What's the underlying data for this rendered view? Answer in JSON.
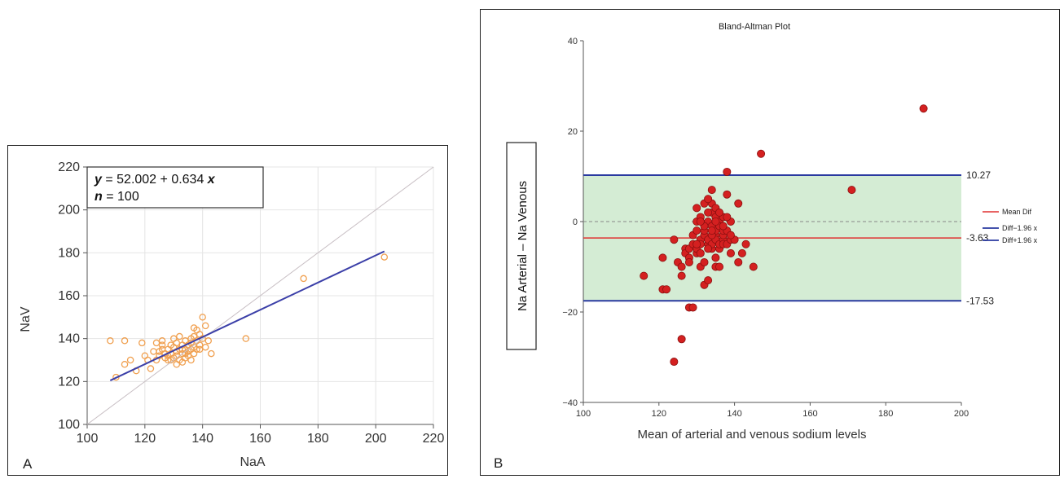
{
  "chart_data": [
    {
      "type": "scatter",
      "panel_label": "A",
      "title": "",
      "xlabel": "NaA",
      "ylabel": "NaV",
      "xlim": [
        100,
        220
      ],
      "ylim": [
        100,
        220
      ],
      "xticks": [
        "100",
        "120",
        "140",
        "160",
        "180",
        "200",
        "220"
      ],
      "yticks": [
        "100",
        "120",
        "140",
        "160",
        "180",
        "200",
        "220"
      ],
      "grid": true,
      "legend": {
        "eq_y": "y",
        "eq_rest": " = 52.002  +  0.634 ",
        "eq_x": "x",
        "n_label": "n",
        "n_rest": " = 100"
      },
      "regression": {
        "intercept": 52.002,
        "slope": 0.634,
        "x_range": [
          108,
          203
        ]
      },
      "identity_line": true,
      "colors": {
        "points": "#f0a050",
        "regression": "#3b3fa8",
        "identity": "#c8bfc4"
      },
      "points": [
        [
          108,
          139
        ],
        [
          110,
          122
        ],
        [
          113,
          139
        ],
        [
          113,
          128
        ],
        [
          115,
          130
        ],
        [
          117,
          125
        ],
        [
          119,
          138
        ],
        [
          120,
          132
        ],
        [
          121,
          130
        ],
        [
          122,
          126
        ],
        [
          123,
          134
        ],
        [
          124,
          130
        ],
        [
          124,
          138
        ],
        [
          125,
          132
        ],
        [
          126,
          137
        ],
        [
          126,
          135
        ],
        [
          126,
          139
        ],
        [
          127,
          133
        ],
        [
          127,
          131
        ],
        [
          128,
          135
        ],
        [
          128,
          132
        ],
        [
          129,
          133
        ],
        [
          129,
          137
        ],
        [
          130,
          136
        ],
        [
          130,
          131
        ],
        [
          130,
          140
        ],
        [
          131,
          128
        ],
        [
          131,
          134
        ],
        [
          131,
          138
        ],
        [
          132,
          130
        ],
        [
          132,
          135
        ],
        [
          132,
          141
        ],
        [
          133,
          133
        ],
        [
          133,
          137
        ],
        [
          133,
          129
        ],
        [
          134,
          131
        ],
        [
          134,
          135
        ],
        [
          134,
          139
        ],
        [
          135,
          134
        ],
        [
          135,
          137
        ],
        [
          135,
          132
        ],
        [
          136,
          140
        ],
        [
          136,
          135
        ],
        [
          136,
          130
        ],
        [
          137,
          145
        ],
        [
          137,
          136
        ],
        [
          137,
          133
        ],
        [
          138,
          144
        ],
        [
          138,
          139
        ],
        [
          138,
          135
        ],
        [
          139,
          137
        ],
        [
          139,
          142
        ],
        [
          140,
          150
        ],
        [
          140,
          140
        ],
        [
          141,
          146
        ],
        [
          141,
          136
        ],
        [
          142,
          139
        ],
        [
          143,
          133
        ],
        [
          155,
          140
        ],
        [
          175,
          168
        ],
        [
          203,
          178
        ],
        [
          125,
          134
        ],
        [
          129,
          130
        ],
        [
          133,
          135
        ],
        [
          136,
          138
        ],
        [
          128,
          130
        ],
        [
          131,
          132
        ],
        [
          134,
          133
        ],
        [
          137,
          141
        ],
        [
          139,
          135
        ]
      ]
    },
    {
      "type": "scatter",
      "panel_label": "B",
      "title": "Bland-Altman Plot",
      "xlabel": "Mean of arterial and venous sodium levels",
      "ylabel": "Na Arterial – Na Venous",
      "xlim": [
        100,
        200
      ],
      "ylim": [
        -40,
        40
      ],
      "xticks": [
        "100",
        "120",
        "140",
        "160",
        "180",
        "200"
      ],
      "yticks": [
        "40",
        "20",
        "0",
        "−20",
        "−40"
      ],
      "mean_diff": -3.63,
      "upper_loa": 10.27,
      "lower_loa": -17.53,
      "mean_label": "-3.63",
      "upper_label": "10.27",
      "lower_label": "-17.53",
      "legend": {
        "mean": "Mean Dif",
        "lower": "Diff−1.96 x",
        "upper": "Diff+1.96 x"
      },
      "colors": {
        "points": "#d42020",
        "point_stroke": "#8a1010",
        "mean_line": "#e03030",
        "loa_line": "#2a3aa0",
        "band": "#d4ecd4",
        "zero_line": "#888888"
      },
      "points": [
        [
          116,
          -12
        ],
        [
          121,
          -8
        ],
        [
          121,
          -15
        ],
        [
          122,
          -15
        ],
        [
          124,
          -4
        ],
        [
          124,
          -31
        ],
        [
          125,
          -9
        ],
        [
          126,
          -10
        ],
        [
          126,
          -26
        ],
        [
          126,
          -12
        ],
        [
          127,
          -6
        ],
        [
          127,
          -7
        ],
        [
          128,
          -8
        ],
        [
          128,
          -9
        ],
        [
          128,
          -6
        ],
        [
          128,
          -19
        ],
        [
          129,
          -19
        ],
        [
          129,
          -5
        ],
        [
          129,
          -3
        ],
        [
          130,
          -7
        ],
        [
          130,
          -2
        ],
        [
          130,
          0
        ],
        [
          130,
          3
        ],
        [
          130,
          -6
        ],
        [
          131,
          -4
        ],
        [
          131,
          -5
        ],
        [
          131,
          1
        ],
        [
          131,
          -10
        ],
        [
          132,
          -14
        ],
        [
          132,
          -3
        ],
        [
          132,
          4
        ],
        [
          132,
          -2
        ],
        [
          133,
          -5
        ],
        [
          133,
          0
        ],
        [
          133,
          -13
        ],
        [
          133,
          -4
        ],
        [
          134,
          -6
        ],
        [
          134,
          2
        ],
        [
          134,
          7
        ],
        [
          134,
          4
        ],
        [
          134,
          -1
        ],
        [
          134,
          -5
        ],
        [
          135,
          1
        ],
        [
          135,
          -3
        ],
        [
          135,
          -4
        ],
        [
          135,
          -10
        ],
        [
          135,
          -2
        ],
        [
          135,
          3
        ],
        [
          136,
          -6
        ],
        [
          136,
          0
        ],
        [
          136,
          -5
        ],
        [
          136,
          -10
        ],
        [
          136,
          -1
        ],
        [
          137,
          -4
        ],
        [
          137,
          -3
        ],
        [
          137,
          -5
        ],
        [
          137,
          1
        ],
        [
          137,
          -2
        ],
        [
          138,
          6
        ],
        [
          138,
          -5
        ],
        [
          138,
          11
        ],
        [
          138,
          -2
        ],
        [
          139,
          -7
        ],
        [
          139,
          0
        ],
        [
          139,
          -4
        ],
        [
          140,
          -4
        ],
        [
          141,
          -9
        ],
        [
          141,
          4
        ],
        [
          142,
          -7
        ],
        [
          143,
          -5
        ],
        [
          145,
          -10
        ],
        [
          147,
          15
        ],
        [
          171,
          7
        ],
        [
          190,
          25
        ],
        [
          133,
          2
        ],
        [
          132,
          -1
        ],
        [
          134,
          -3
        ],
        [
          136,
          2
        ],
        [
          138,
          1
        ],
        [
          131,
          -7
        ],
        [
          130,
          -5
        ],
        [
          133,
          -6
        ],
        [
          135,
          -8
        ],
        [
          134,
          -2
        ],
        [
          132,
          -9
        ],
        [
          137,
          -1
        ],
        [
          139,
          -3
        ],
        [
          131,
          0
        ],
        [
          133,
          5
        ],
        [
          135,
          0
        ]
      ]
    }
  ]
}
